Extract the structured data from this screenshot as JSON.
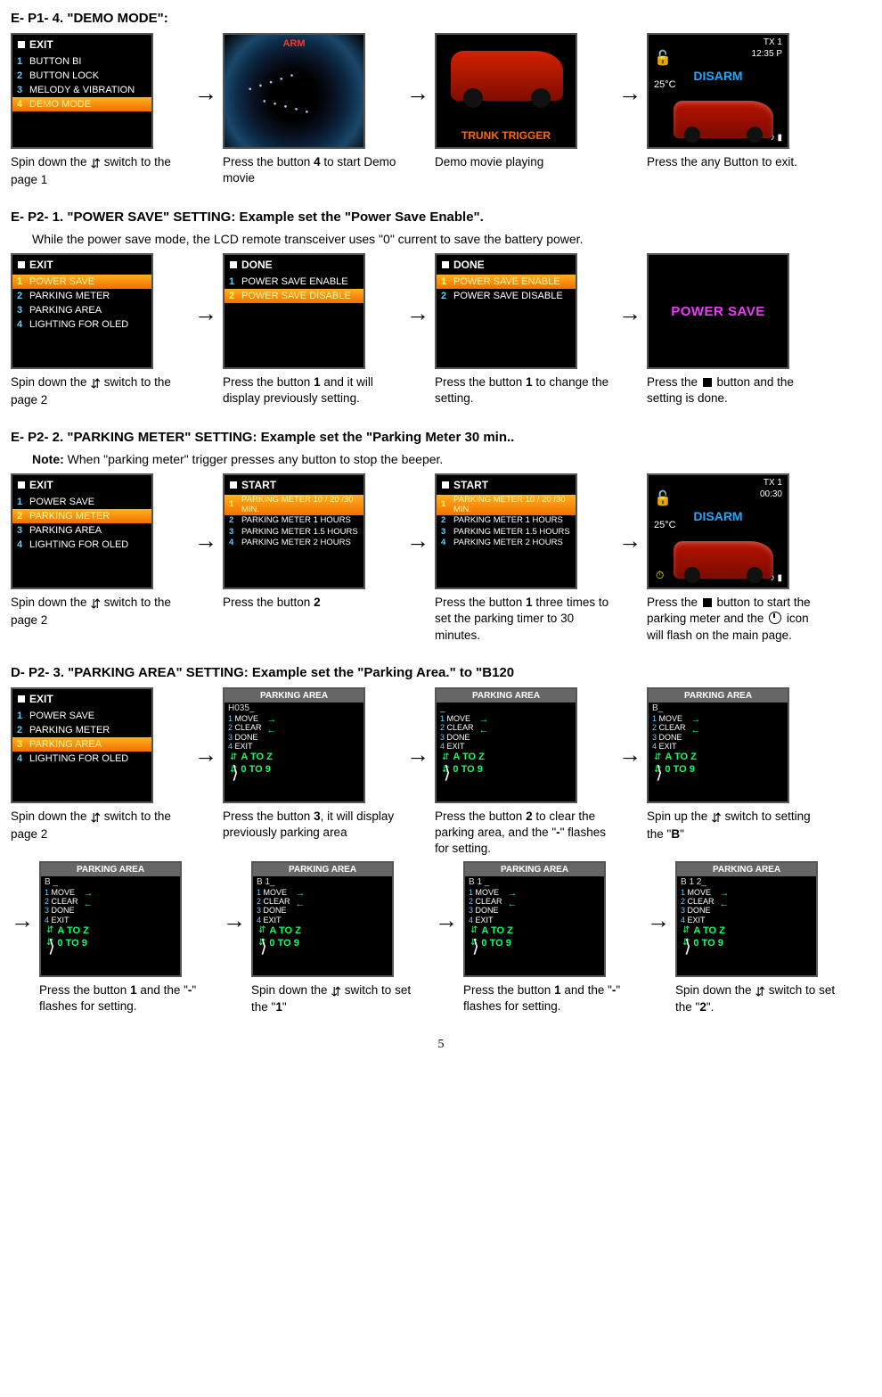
{
  "pageNumber": "5",
  "sections": {
    "ep14": {
      "heading": "E- P1- 4. \"DEMO MODE\":",
      "steps": [
        {
          "caption_pre": "Spin down the ",
          "caption_post": " switch to the page 1",
          "lcd": {
            "title": "EXIT",
            "items": [
              {
                "n": "1",
                "t": "BUTTON BI",
                "sel": false
              },
              {
                "n": "2",
                "t": "BUTTON LOCK",
                "sel": false
              },
              {
                "n": "3",
                "t": "MELODY & VIBRATION",
                "sel": false
              },
              {
                "n": "4",
                "t": "DEMO MODE",
                "sel": true
              }
            ]
          }
        },
        {
          "caption": "Press the button <b>4</b> to start Demo movie",
          "demo": {
            "arm": "ARM"
          }
        },
        {
          "caption": "Demo movie playing",
          "trunk": {
            "label": "TRUNK TRIGGER"
          }
        },
        {
          "caption": "Press the any Button to exit.",
          "car": {
            "tx": "TX 1",
            "time": "12:35 P",
            "status": "DISARM",
            "statusColor": "#1aa9ff",
            "temp": "25°C"
          }
        }
      ]
    },
    "ep21": {
      "heading": "E- P2- 1. \"POWER SAVE\" SETTING:",
      "heading_tail": "    Example set the \"Power Save Enable\".",
      "sub": "While the power save mode, the LCD remote transceiver uses \"0\" current to save the battery power.",
      "steps": [
        {
          "caption_pre": "Spin down the ",
          "caption_post": " switch to the page 2",
          "lcd": {
            "title": "EXIT",
            "items": [
              {
                "n": "1",
                "t": "POWER SAVE",
                "sel": true
              },
              {
                "n": "2",
                "t": "PARKING METER",
                "sel": false
              },
              {
                "n": "3",
                "t": "PARKING AREA",
                "sel": false
              },
              {
                "n": "4",
                "t": "LIGHTING FOR OLED",
                "sel": false
              }
            ]
          }
        },
        {
          "caption": "Press the button <b>1</b> and it will display previously setting.",
          "lcd": {
            "title": "DONE",
            "items": [
              {
                "n": "1",
                "t": "POWER SAVE ENABLE",
                "sel": false
              },
              {
                "n": "2",
                "t": "POWER SAVE DISABLE",
                "sel": true
              }
            ]
          }
        },
        {
          "caption": "Press the button <b>1</b> to change the setting.",
          "lcd": {
            "title": "DONE",
            "items": [
              {
                "n": "1",
                "t": "POWER SAVE ENABLE",
                "sel": true
              },
              {
                "n": "2",
                "t": "POWER SAVE DISABLE",
                "sel": false
              }
            ]
          }
        },
        {
          "caption_pre": "Press the ",
          "caption_sq": true,
          "caption_post": " button and the setting is done.",
          "splash": "POWER SAVE"
        }
      ]
    },
    "ep22": {
      "heading": "E- P2- 2. \"PARKING METER\" SETTING:",
      "heading_tail": "    Example set the \"Parking Meter 30 min..",
      "sub": "<b>Note:</b> When \"parking meter\" trigger presses any button to stop the beeper.",
      "steps": [
        {
          "caption_pre": "Spin down the ",
          "caption_post": " switch to the page 2",
          "lcd": {
            "title": "EXIT",
            "items": [
              {
                "n": "1",
                "t": "POWER SAVE",
                "sel": false
              },
              {
                "n": "2",
                "t": "PARKING METER",
                "sel": true
              },
              {
                "n": "3",
                "t": "PARKING AREA",
                "sel": false
              },
              {
                "n": "4",
                "t": "LIGHTING FOR OLED",
                "sel": false
              }
            ]
          }
        },
        {
          "caption": "Press the button <b>2</b>",
          "lcd": {
            "title": "START",
            "small": true,
            "items": [
              {
                "n": "1",
                "t": "PARKING METER 10 / 20 /30 MIN.",
                "sel": true
              },
              {
                "n": "2",
                "t": "PARKING METER 1 HOURS",
                "sel": false
              },
              {
                "n": "3",
                "t": "PARKING METER 1.5 HOURS",
                "sel": false
              },
              {
                "n": "4",
                "t": "PARKING METER 2 HOURS",
                "sel": false
              }
            ]
          }
        },
        {
          "caption": "Press the button <b>1</b> three times to set the parking timer to 30 minutes.",
          "lcd": {
            "title": "START",
            "small": true,
            "items": [
              {
                "n": "1",
                "t": "PARKING METER 10 / 20 /30 MIN.",
                "sel": true
              },
              {
                "n": "2",
                "t": "PARKING METER 1 HOURS",
                "sel": false
              },
              {
                "n": "3",
                "t": "PARKING METER 1.5 HOURS",
                "sel": false
              },
              {
                "n": "4",
                "t": "PARKING METER 2 HOURS",
                "sel": false
              }
            ]
          }
        },
        {
          "caption_pre": "Press the ",
          "caption_sq": true,
          "caption_mid": " button to start the parking meter and the ",
          "caption_clock": true,
          "caption_post": " icon will flash on the main page.",
          "car": {
            "tx": "TX 1",
            "time": "00:30",
            "status": "DISARM",
            "statusColor": "#1aa9ff",
            "temp": "25°C",
            "timer": true
          }
        }
      ]
    },
    "dp23": {
      "heading": "D- P2- 3. \"PARKING AREA\" SETTING:",
      "heading_tail": "    Example set the \"Parking Area.\" to \"B120",
      "row1": [
        {
          "caption_pre": "Spin down the ",
          "caption_post": " switch to the page 2",
          "lcd": {
            "title": "EXIT",
            "items": [
              {
                "n": "1",
                "t": "POWER SAVE",
                "sel": false
              },
              {
                "n": "2",
                "t": "PARKING METER",
                "sel": false
              },
              {
                "n": "3",
                "t": "PARKING AREA",
                "sel": true
              },
              {
                "n": "4",
                "t": "LIGHTING FOR OLED",
                "sel": false
              }
            ]
          }
        },
        {
          "caption": "Press the button <b>3</b>, it will display previously parking area",
          "pa": {
            "val": "H035_"
          }
        },
        {
          "caption": "Press the button <b>2</b> to clear the parking area, and the \"<b>-</b>\" flashes for setting.",
          "pa": {
            "val": "_"
          }
        },
        {
          "caption_pre": "Spin up the ",
          "caption_post": " switch to setting the \"<b>B</b>\"",
          "pa": {
            "val": "B_"
          }
        }
      ],
      "row2": [
        {
          "caption": "Press the button <b>1</b> and the \"<b>-</b>\" flashes for setting.",
          "pa": {
            "val": "B _"
          }
        },
        {
          "caption_pre": "Spin down the ",
          "caption_post": " switch to set the \"<b>1</b>\"",
          "pa": {
            "val": "B 1_"
          }
        },
        {
          "caption": "Press the button <b>1</b> and the \"<b>-</b>\" flashes for setting.",
          "pa": {
            "val": "B 1 _"
          }
        },
        {
          "caption_pre": "Spin down the ",
          "caption_post": " switch to set the \"<b>2</b>\".",
          "pa": {
            "val": "B 1 2_"
          }
        }
      ],
      "pa_common": {
        "title": "PARKING AREA",
        "menu": [
          {
            "n": "1",
            "t": "MOVE"
          },
          {
            "n": "2",
            "t": "CLEAR"
          },
          {
            "n": "3",
            "t": "DONE"
          },
          {
            "n": "4",
            "t": "EXIT"
          }
        ],
        "hintA": "A TO Z",
        "hintB": "0 TO 9"
      }
    }
  }
}
